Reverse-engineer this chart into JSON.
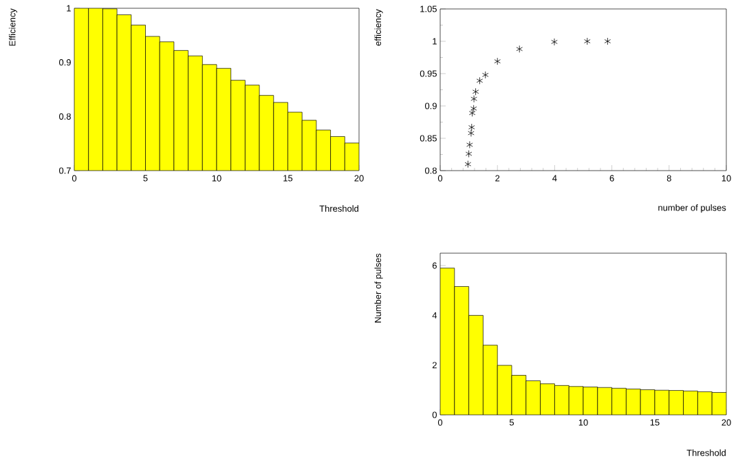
{
  "chart_data": [
    {
      "type": "histogram",
      "xlabel": "Threshold",
      "ylabel": "Efficiency",
      "color": "#ffff00",
      "bins": [
        0,
        1,
        2,
        3,
        4,
        5,
        6,
        7,
        8,
        9,
        10,
        11,
        12,
        13,
        14,
        15,
        16,
        17,
        18,
        19,
        20
      ],
      "values": [
        1.0,
        1.0,
        0.999,
        0.988,
        0.969,
        0.948,
        0.938,
        0.922,
        0.912,
        0.896,
        0.889,
        0.867,
        0.858,
        0.839,
        0.826,
        0.808,
        0.793,
        0.775,
        0.763,
        0.751
      ],
      "xlim": [
        0,
        20
      ],
      "ylim": [
        0.7,
        1
      ],
      "xticks": [
        0,
        5,
        10,
        15,
        20
      ],
      "yticks": [
        0.7,
        0.8,
        0.9,
        1
      ]
    },
    {
      "type": "scatter",
      "xlabel": "number of pulses",
      "ylabel": "efficiency",
      "color": "#000000",
      "marker": "cross",
      "x": [
        0.97,
        1.0,
        1.03,
        1.08,
        1.1,
        1.12,
        1.17,
        1.18,
        1.24,
        1.38,
        1.58,
        2.0,
        2.77,
        3.99,
        5.14,
        5.85
      ],
      "values": [
        0.81,
        0.826,
        0.84,
        0.858,
        0.867,
        0.889,
        0.896,
        0.911,
        0.922,
        0.939,
        0.948,
        0.969,
        0.988,
        0.999,
        1.0,
        1.0
      ],
      "xlim": [
        0,
        10
      ],
      "ylim": [
        0.8,
        1.05
      ],
      "xticks": [
        0,
        2,
        4,
        6,
        8,
        10
      ],
      "yticks": [
        0.8,
        0.85,
        0.9,
        0.95,
        1,
        1.05
      ]
    },
    {
      "type": "histogram",
      "xlabel": "Threshold",
      "ylabel": "Number of pulses",
      "color": "#ffff00",
      "bins": [
        0,
        1,
        2,
        3,
        4,
        5,
        6,
        7,
        8,
        9,
        10,
        11,
        12,
        13,
        14,
        15,
        16,
        17,
        18,
        19,
        20
      ],
      "values": [
        5.9,
        5.16,
        4.0,
        2.8,
        1.99,
        1.59,
        1.37,
        1.25,
        1.18,
        1.14,
        1.12,
        1.1,
        1.07,
        1.04,
        1.01,
        0.99,
        0.98,
        0.96,
        0.93,
        0.9
      ],
      "xlim": [
        0,
        20
      ],
      "ylim": [
        0,
        6.5
      ],
      "xticks": [
        0,
        5,
        10,
        15,
        20
      ],
      "yticks": [
        0,
        2,
        4,
        6
      ]
    }
  ]
}
